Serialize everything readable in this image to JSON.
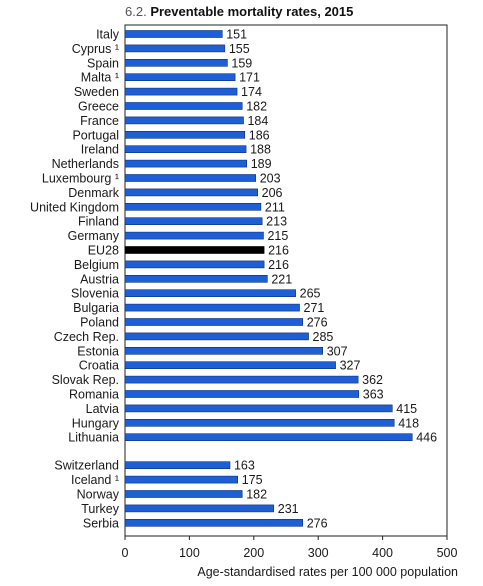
{
  "figure": {
    "number": "6.2.",
    "title": "Preventable mortality rates, 2015"
  },
  "chart_data": {
    "type": "bar",
    "orientation": "horizontal",
    "title": "Preventable mortality rates, 2015",
    "xlabel": "Age-standardised rates per 100 000 population",
    "ylabel": "",
    "xlim": [
      0,
      500
    ],
    "xticks": [
      0,
      100,
      200,
      300,
      400,
      500
    ],
    "grid": false,
    "bar_color": "#1f5fd6",
    "highlight_color": "#000000",
    "groups": [
      {
        "name": "",
        "categories": [
          "Italy",
          "Cyprus ¹",
          "Spain",
          "Malta ¹",
          "Sweden",
          "Greece",
          "France",
          "Portugal",
          "Ireland",
          "Netherlands",
          "Luxembourg ¹",
          "Denmark",
          "United Kingdom",
          "Finland",
          "Germany",
          "EU28",
          "Belgium",
          "Austria",
          "Slovenia",
          "Bulgaria",
          "Poland",
          "Czech Rep.",
          "Estonia",
          "Croatia",
          "Slovak Rep.",
          "Romania",
          "Latvia",
          "Hungary",
          "Lithuania"
        ],
        "values": [
          151,
          155,
          159,
          171,
          174,
          182,
          184,
          186,
          188,
          189,
          203,
          206,
          211,
          213,
          215,
          216,
          216,
          221,
          265,
          271,
          276,
          285,
          307,
          327,
          362,
          363,
          415,
          418,
          446
        ],
        "highlight": [
          "EU28"
        ]
      },
      {
        "name": "",
        "categories": [
          "Switzerland",
          "Iceland ¹",
          "Norway",
          "Turkey",
          "Serbia"
        ],
        "values": [
          163,
          175,
          182,
          231,
          276
        ],
        "highlight": []
      }
    ]
  }
}
